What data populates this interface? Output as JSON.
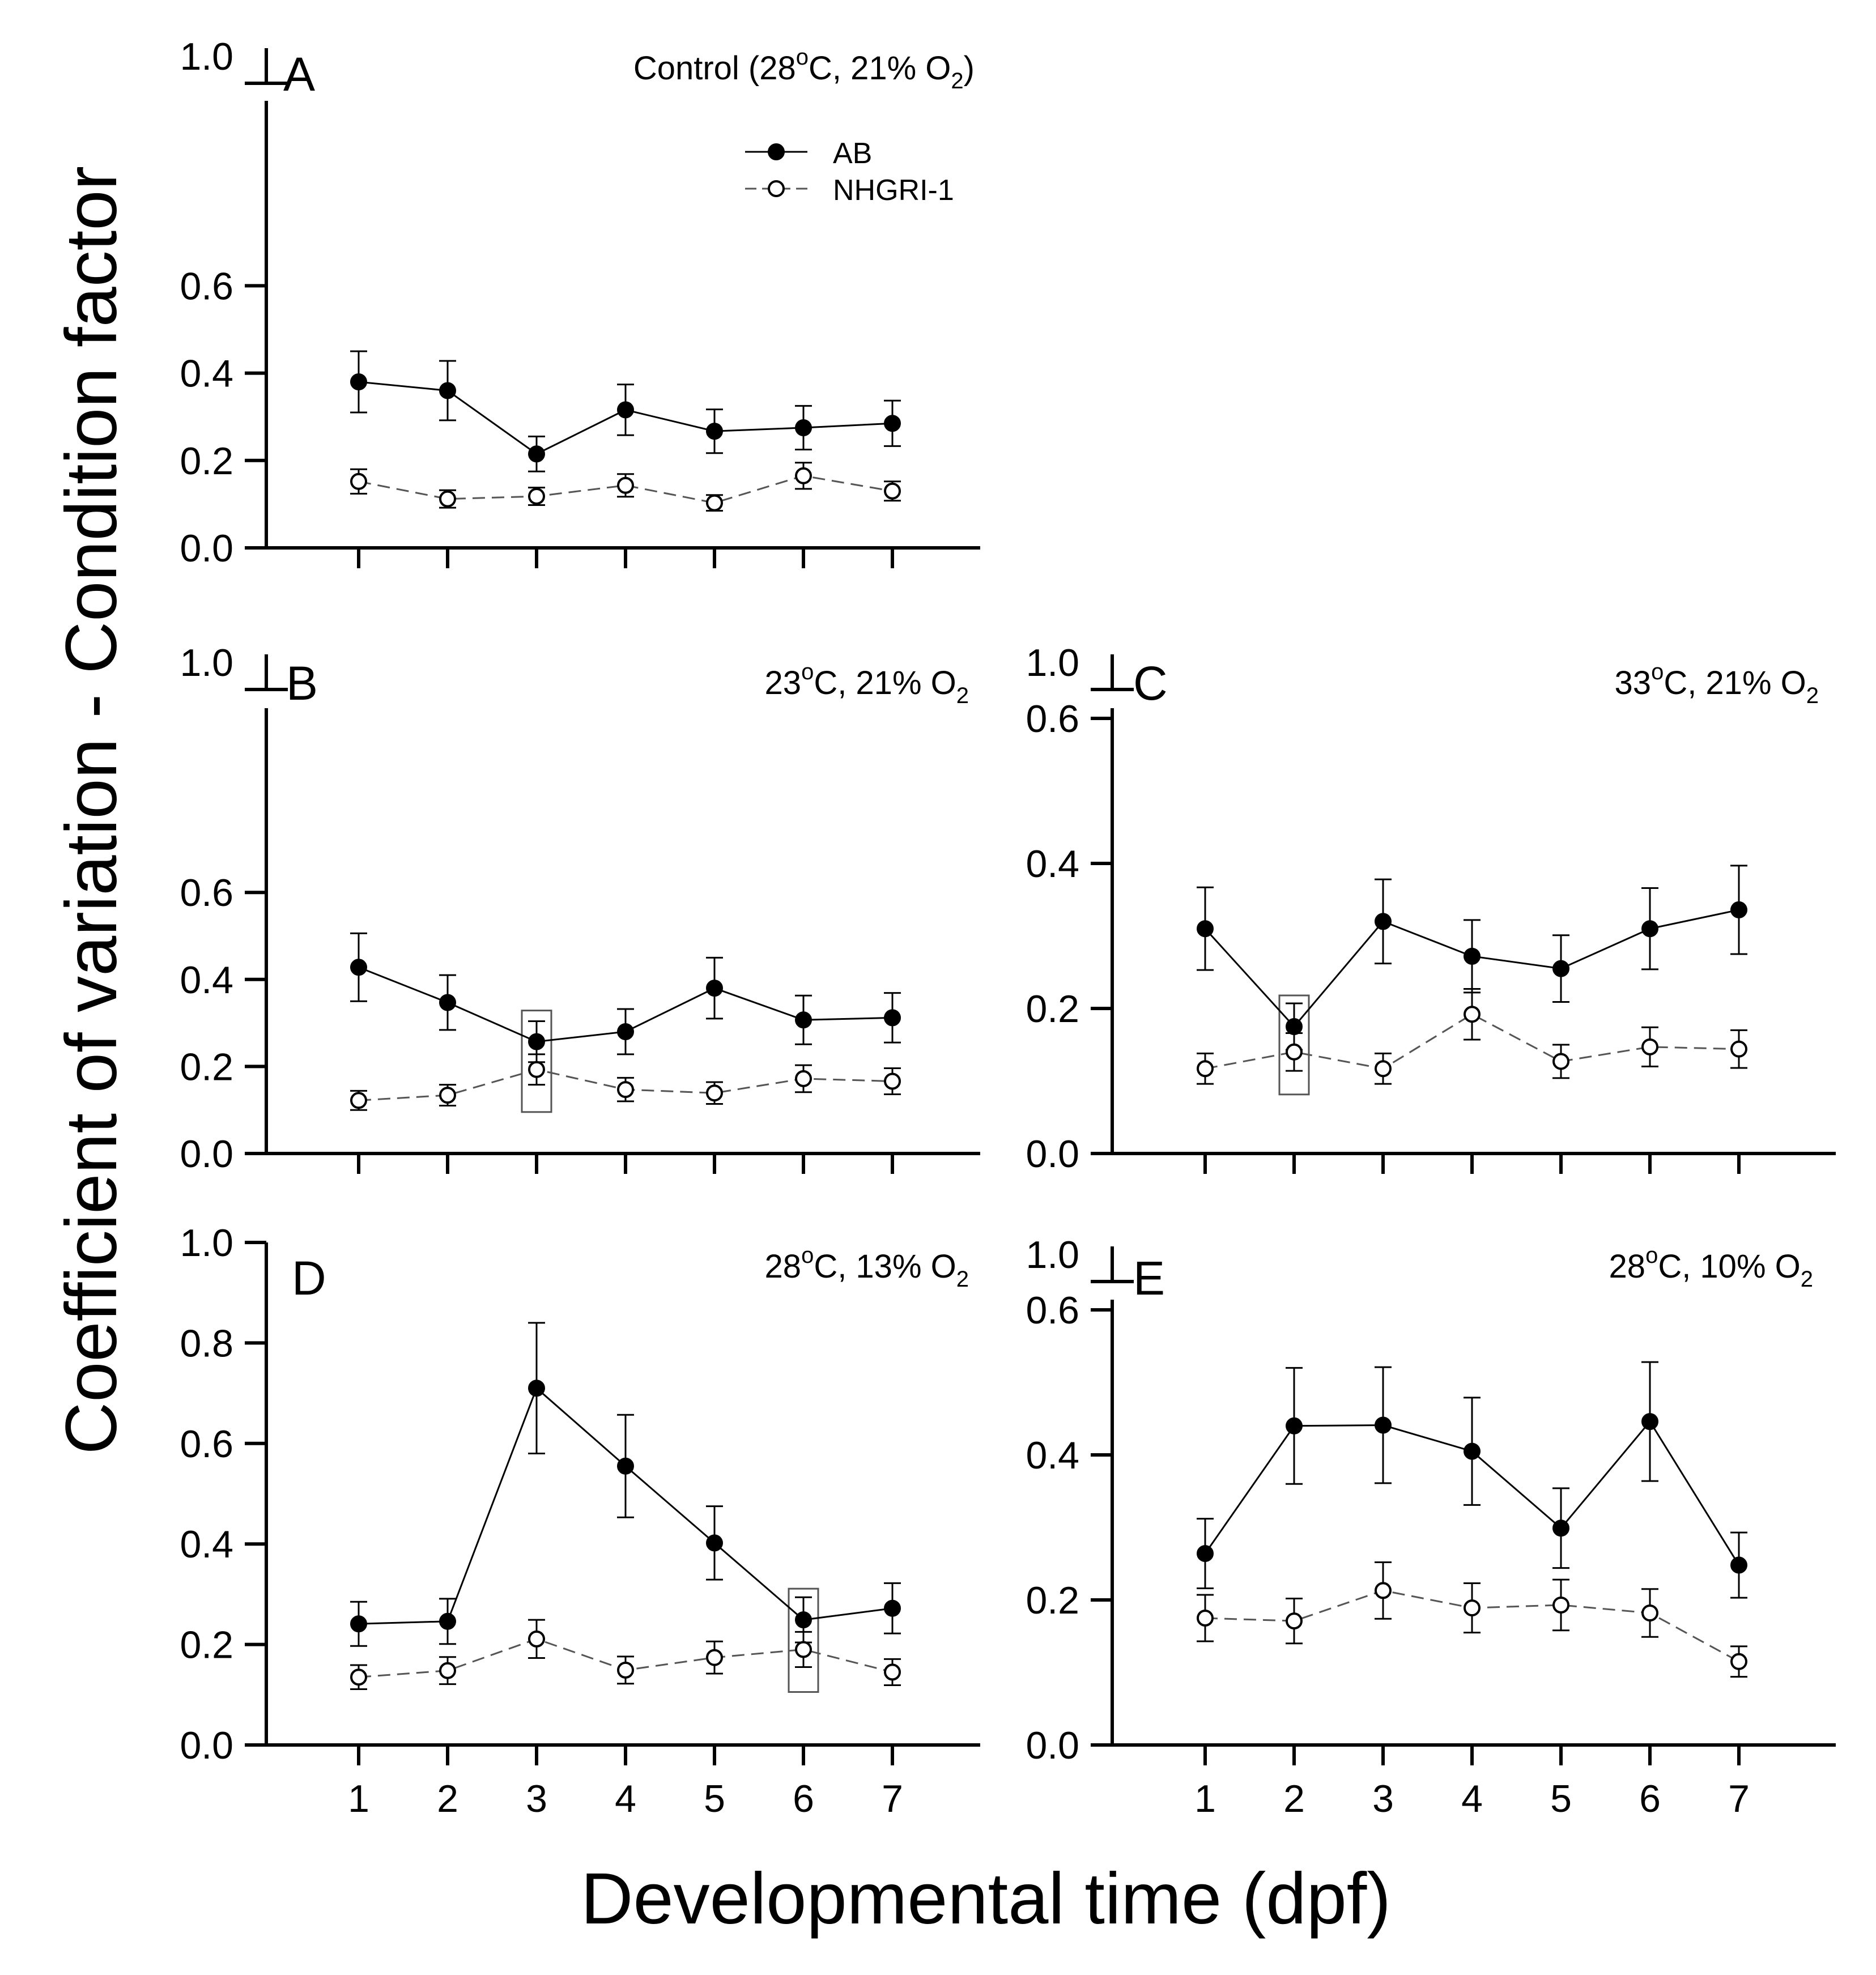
{
  "figure": {
    "ylabel": "Coefficient of variation - Condition factor",
    "xlabel": "Developmental time (dpf)"
  },
  "legend": {
    "ab": "AB",
    "nhgri": "NHGRI-1"
  },
  "chart_data": [
    {
      "panel": "A",
      "type": "line",
      "title": "Control (28",
      "title_deg": "o",
      "title_mid": "C, 21% O",
      "title_sub": "2",
      "title_end": ")",
      "x": [
        1,
        2,
        3,
        4,
        5,
        6,
        7
      ],
      "ylim": [
        0,
        1.0
      ],
      "yticks": [
        "0.0",
        "0.2",
        "0.4",
        "0.6"
      ],
      "break_top_label": "1.0",
      "axis_break": true,
      "series": [
        {
          "name": "AB",
          "values": [
            0.38,
            0.36,
            0.215,
            0.316,
            0.267,
            0.275,
            0.285
          ],
          "err": [
            0.07,
            0.068,
            0.04,
            0.058,
            0.05,
            0.05,
            0.052
          ]
        },
        {
          "name": "NHGRI-1",
          "values": [
            0.152,
            0.112,
            0.118,
            0.143,
            0.103,
            0.165,
            0.13
          ],
          "err": [
            0.028,
            0.02,
            0.02,
            0.026,
            0.018,
            0.03,
            0.022
          ]
        }
      ]
    },
    {
      "panel": "B",
      "type": "line",
      "title": "23",
      "title_deg": "o",
      "title_mid": "C, 21% O",
      "title_sub": "2",
      "title_end": "",
      "x": [
        1,
        2,
        3,
        4,
        5,
        6,
        7
      ],
      "ylim": [
        0,
        1.0
      ],
      "yticks": [
        "0.0",
        "0.2",
        "0.4",
        "0.6"
      ],
      "break_top_label": "1.0",
      "axis_break": true,
      "highlight_x": 3,
      "series": [
        {
          "name": "AB",
          "values": [
            0.428,
            0.347,
            0.257,
            0.28,
            0.38,
            0.307,
            0.312
          ],
          "err": [
            0.078,
            0.063,
            0.047,
            0.052,
            0.07,
            0.056,
            0.057
          ]
        },
        {
          "name": "NHGRI-1",
          "values": [
            0.122,
            0.134,
            0.193,
            0.147,
            0.139,
            0.172,
            0.166
          ],
          "err": [
            0.022,
            0.024,
            0.035,
            0.027,
            0.025,
            0.031,
            0.03
          ]
        }
      ]
    },
    {
      "panel": "C",
      "type": "line",
      "title": "33",
      "title_deg": "o",
      "title_mid": "C, 21% O",
      "title_sub": "2",
      "title_end": "",
      "x": [
        1,
        2,
        3,
        4,
        5,
        6,
        7
      ],
      "ylim": [
        0,
        0.6
      ],
      "yticks": [
        "0.0",
        "0.2",
        "0.4",
        "0.6"
      ],
      "break_top_label": "1.0",
      "axis_break": true,
      "highlight_x": 2,
      "series": [
        {
          "name": "AB",
          "values": [
            0.31,
            0.175,
            0.32,
            0.272,
            0.255,
            0.31,
            0.336
          ],
          "err": [
            0.057,
            0.032,
            0.058,
            0.05,
            0.046,
            0.056,
            0.061
          ]
        },
        {
          "name": "NHGRI-1",
          "values": [
            0.117,
            0.14,
            0.117,
            0.192,
            0.127,
            0.147,
            0.144
          ],
          "err": [
            0.021,
            0.026,
            0.021,
            0.035,
            0.023,
            0.027,
            0.026
          ]
        }
      ]
    },
    {
      "panel": "D",
      "type": "line",
      "title": "28",
      "title_deg": "o",
      "title_mid": "C, 13% O",
      "title_sub": "2",
      "title_end": "",
      "x": [
        1,
        2,
        3,
        4,
        5,
        6,
        7
      ],
      "ylim": [
        0,
        1.0
      ],
      "yticks": [
        "0.0",
        "0.2",
        "0.4",
        "0.6",
        "0.8",
        "1.0"
      ],
      "axis_break": false,
      "highlight_x": 6,
      "series": [
        {
          "name": "AB",
          "values": [
            0.241,
            0.246,
            0.71,
            0.555,
            0.402,
            0.249,
            0.272
          ],
          "err": [
            0.044,
            0.045,
            0.13,
            0.102,
            0.073,
            0.045,
            0.05
          ]
        },
        {
          "name": "NHGRI-1",
          "values": [
            0.135,
            0.148,
            0.211,
            0.149,
            0.174,
            0.19,
            0.145
          ],
          "err": [
            0.024,
            0.027,
            0.038,
            0.027,
            0.032,
            0.035,
            0.026
          ]
        }
      ]
    },
    {
      "panel": "E",
      "type": "line",
      "title": "28",
      "title_deg": "o",
      "title_mid": "C, 10% O",
      "title_sub": "2",
      "title_end": "",
      "x": [
        1,
        2,
        3,
        4,
        5,
        6,
        7
      ],
      "ylim": [
        0,
        0.6
      ],
      "yticks": [
        "0.0",
        "0.2",
        "0.4",
        "0.6"
      ],
      "break_top_label": "1.0",
      "axis_break": true,
      "series": [
        {
          "name": "AB",
          "values": [
            0.264,
            0.44,
            0.441,
            0.405,
            0.299,
            0.446,
            0.248
          ],
          "err": [
            0.048,
            0.08,
            0.08,
            0.074,
            0.055,
            0.082,
            0.045
          ]
        },
        {
          "name": "NHGRI-1",
          "values": [
            0.175,
            0.171,
            0.213,
            0.189,
            0.193,
            0.182,
            0.115
          ],
          "err": [
            0.032,
            0.031,
            0.039,
            0.034,
            0.035,
            0.033,
            0.021
          ]
        }
      ]
    }
  ]
}
